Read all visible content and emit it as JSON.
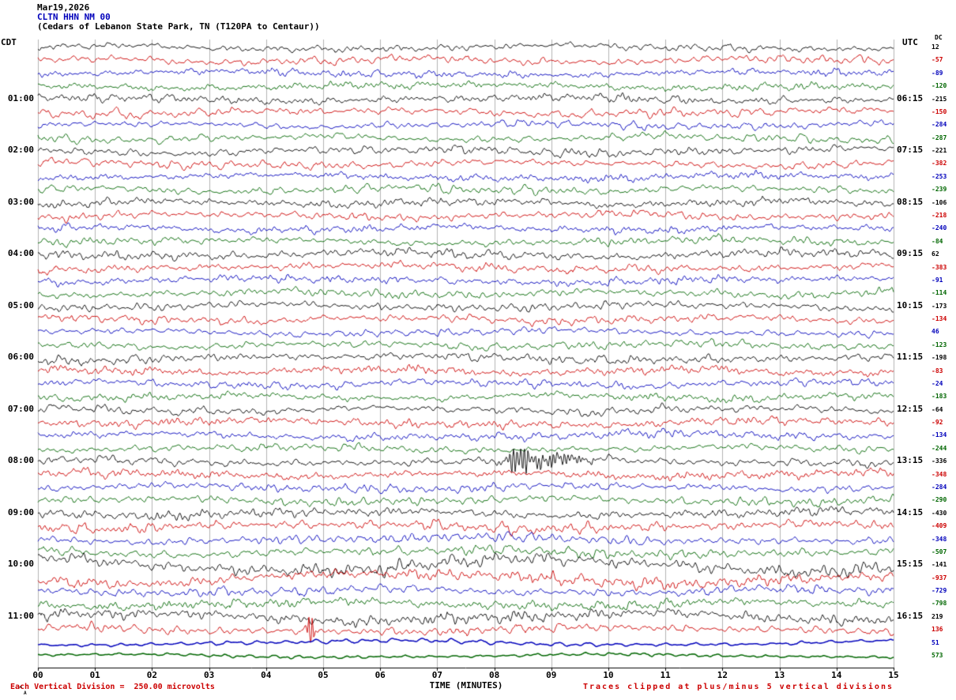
{
  "header": {
    "date": "Mar19,2026",
    "station": "CLTN HHN NM 00",
    "location": "(Cedars of Lebanon State Park, TN (T120PA to Centaur))",
    "tz_left": "CDT",
    "tz_right": "UTC",
    "dc_label": "DC"
  },
  "footer": {
    "left": "Each Vertical Division =  250.00 microvolts",
    "right": "Traces clipped at plus/minus 5 vertical divisions",
    "corner_caret": "^",
    "corner_letter": "A"
  },
  "colors": {
    "black": "#000000",
    "red": "#cc0000",
    "blue": "#0000bb",
    "green": "#006600",
    "grid": "#b3b3b3",
    "note": "#cc0000"
  },
  "chart_data": {
    "type": "line",
    "subtype": "helicorder-seismogram",
    "title": "CLTN HHN NM 00 helicorder",
    "date": "Mar19,2026",
    "station": "CLTN HHN NM 00",
    "station_location": "Cedars of Lebanon State Park, TN (T120PA to Centaur)",
    "timezone_left": "CDT",
    "timezone_right": "UTC",
    "minutes_per_line": 15,
    "vertical_division_microvolts": 250.0,
    "clip_divisions": 5,
    "x_axis": {
      "label": "TIME (MINUTES)",
      "min": 0,
      "max": 15,
      "tick_labels": [
        "00",
        "01",
        "02",
        "03",
        "04",
        "05",
        "06",
        "07",
        "08",
        "09",
        "10",
        "11",
        "12",
        "13",
        "14",
        "15"
      ]
    },
    "trace_color_cycle": [
      "black",
      "red",
      "blue",
      "green"
    ],
    "traces": [
      {
        "color": "black",
        "dc": "12",
        "cdt": "",
        "utc": "",
        "amp": 0.9
      },
      {
        "color": "red",
        "dc": "-57",
        "cdt": "",
        "utc": "",
        "amp": 1.0
      },
      {
        "color": "blue",
        "dc": "-89",
        "cdt": "",
        "utc": "",
        "amp": 0.9
      },
      {
        "color": "green",
        "dc": "-120",
        "cdt": "",
        "utc": "",
        "amp": 0.9
      },
      {
        "color": "black",
        "dc": "-215",
        "cdt": "01:00",
        "utc": "06:15",
        "amp": 1.0
      },
      {
        "color": "red",
        "dc": "-150",
        "cdt": "",
        "utc": "",
        "amp": 1.0
      },
      {
        "color": "blue",
        "dc": "-284",
        "cdt": "",
        "utc": "",
        "amp": 0.9
      },
      {
        "color": "green",
        "dc": "-287",
        "cdt": "",
        "utc": "",
        "amp": 1.0
      },
      {
        "color": "black",
        "dc": "-221",
        "cdt": "02:00",
        "utc": "07:15",
        "amp": 1.1
      },
      {
        "color": "red",
        "dc": "-382",
        "cdt": "",
        "utc": "",
        "amp": 1.0
      },
      {
        "color": "blue",
        "dc": "-253",
        "cdt": "",
        "utc": "",
        "amp": 0.9
      },
      {
        "color": "green",
        "dc": "-239",
        "cdt": "",
        "utc": "",
        "amp": 1.0
      },
      {
        "color": "black",
        "dc": "-106",
        "cdt": "03:00",
        "utc": "08:15",
        "amp": 1.0
      },
      {
        "color": "red",
        "dc": "-218",
        "cdt": "",
        "utc": "",
        "amp": 1.0
      },
      {
        "color": "blue",
        "dc": "-240",
        "cdt": "",
        "utc": "",
        "amp": 0.9
      },
      {
        "color": "green",
        "dc": "-84",
        "cdt": "",
        "utc": "",
        "amp": 1.0
      },
      {
        "color": "black",
        "dc": "62",
        "cdt": "04:00",
        "utc": "09:15",
        "amp": 1.1
      },
      {
        "color": "red",
        "dc": "-383",
        "cdt": "",
        "utc": "",
        "amp": 1.1
      },
      {
        "color": "blue",
        "dc": "-91",
        "cdt": "",
        "utc": "",
        "amp": 1.0
      },
      {
        "color": "green",
        "dc": "-114",
        "cdt": "",
        "utc": "",
        "amp": 1.0
      },
      {
        "color": "black",
        "dc": "-173",
        "cdt": "05:00",
        "utc": "10:15",
        "amp": 1.0
      },
      {
        "color": "red",
        "dc": "-134",
        "cdt": "",
        "utc": "",
        "amp": 1.0
      },
      {
        "color": "blue",
        "dc": "46",
        "cdt": "",
        "utc": "",
        "amp": 0.9
      },
      {
        "color": "green",
        "dc": "-123",
        "cdt": "",
        "utc": "",
        "amp": 1.0
      },
      {
        "color": "black",
        "dc": "-198",
        "cdt": "06:00",
        "utc": "11:15",
        "amp": 1.1
      },
      {
        "color": "red",
        "dc": "-83",
        "cdt": "",
        "utc": "",
        "amp": 1.0
      },
      {
        "color": "blue",
        "dc": "-24",
        "cdt": "",
        "utc": "",
        "amp": 1.0
      },
      {
        "color": "green",
        "dc": "-183",
        "cdt": "",
        "utc": "",
        "amp": 0.9
      },
      {
        "color": "black",
        "dc": "-64",
        "cdt": "07:00",
        "utc": "12:15",
        "amp": 1.0
      },
      {
        "color": "red",
        "dc": "-92",
        "cdt": "",
        "utc": "",
        "amp": 1.1
      },
      {
        "color": "blue",
        "dc": "-134",
        "cdt": "",
        "utc": "",
        "amp": 1.0
      },
      {
        "color": "green",
        "dc": "-244",
        "cdt": "",
        "utc": "",
        "amp": 0.9
      },
      {
        "color": "black",
        "dc": "-336",
        "cdt": "08:00",
        "utc": "13:15",
        "amp": 1.0
      },
      {
        "color": "red",
        "dc": "-348",
        "cdt": "",
        "utc": "",
        "amp": 1.0
      },
      {
        "color": "blue",
        "dc": "-284",
        "cdt": "",
        "utc": "",
        "amp": 1.0
      },
      {
        "color": "green",
        "dc": "-290",
        "cdt": "",
        "utc": "",
        "amp": 1.0
      },
      {
        "color": "black",
        "dc": "-430",
        "cdt": "09:00",
        "utc": "14:15",
        "amp": 1.1
      },
      {
        "color": "red",
        "dc": "-409",
        "cdt": "",
        "utc": "",
        "amp": 1.2
      },
      {
        "color": "blue",
        "dc": "-348",
        "cdt": "",
        "utc": "",
        "amp": 1.1
      },
      {
        "color": "green",
        "dc": "-507",
        "cdt": "",
        "utc": "",
        "amp": 1.2
      },
      {
        "color": "black",
        "dc": "-141",
        "cdt": "10:00",
        "utc": "15:15",
        "amp": 1.6
      },
      {
        "color": "red",
        "dc": "-937",
        "cdt": "",
        "utc": "",
        "amp": 1.4
      },
      {
        "color": "blue",
        "dc": "-729",
        "cdt": "",
        "utc": "",
        "amp": 1.1
      },
      {
        "color": "green",
        "dc": "-798",
        "cdt": "",
        "utc": "",
        "amp": 1.2
      },
      {
        "color": "black",
        "dc": "219",
        "cdt": "11:00",
        "utc": "16:15",
        "amp": 1.4
      },
      {
        "color": "red",
        "dc": "136",
        "cdt": "",
        "utc": "",
        "amp": 1.1
      },
      {
        "color": "blue",
        "dc": "51",
        "cdt": "",
        "utc": "",
        "amp": 0.7
      },
      {
        "color": "green",
        "dc": "573",
        "cdt": "",
        "utc": "",
        "amp": 0.6
      }
    ],
    "events": [
      {
        "trace_index": 33,
        "minute": 8.42,
        "relative_amplitude": 4.5,
        "duration_minutes": 0.25,
        "description": "small event burst on 08:00 CDT black trace"
      },
      {
        "trace_index": 33,
        "minute": 8.95,
        "relative_amplitude": 2.0,
        "duration_minutes": 0.9,
        "description": "decaying coda of event on 08:00 CDT trace"
      },
      {
        "trace_index": 46,
        "minute": 4.78,
        "relative_amplitude": 5.5,
        "duration_minutes": 0.1,
        "description": "sharp spike on red trace below 11:00 CDT"
      }
    ]
  }
}
